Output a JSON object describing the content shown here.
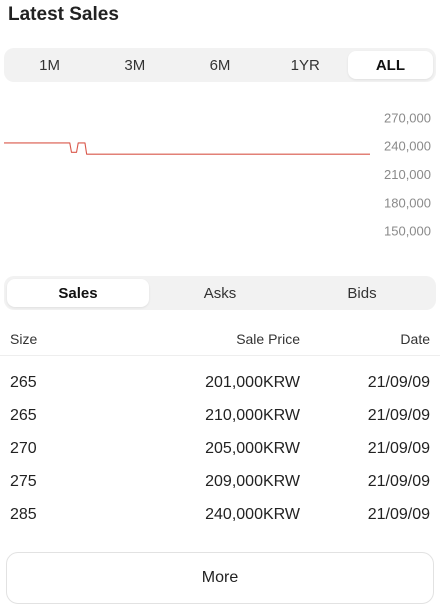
{
  "section_title": "Latest Sales",
  "range_tabs": [
    {
      "label": "1M",
      "active": false
    },
    {
      "label": "3M",
      "active": false
    },
    {
      "label": "6M",
      "active": false
    },
    {
      "label": "1YR",
      "active": false
    },
    {
      "label": "ALL",
      "active": true
    }
  ],
  "chart_data": {
    "type": "line",
    "title": "",
    "xlabel": "",
    "ylabel": "",
    "ylim": [
      140000,
      280000
    ],
    "y_ticks": [
      "270,000",
      "240,000",
      "210,000",
      "180,000",
      "150,000"
    ],
    "y_tick_values": [
      270000,
      240000,
      210000,
      180000,
      150000
    ],
    "line_color": "#d9574a",
    "series": [
      {
        "values": [
          243000,
          243000,
          243000,
          243000,
          243000,
          243000,
          243000,
          243000,
          243000,
          243000,
          243000,
          243000,
          243000,
          243000,
          243000,
          243000,
          243000,
          243000,
          243000,
          243000,
          243000,
          243000,
          243000,
          243000,
          243000,
          243000,
          243000,
          243000,
          243000,
          243000,
          243000,
          243000,
          243000,
          243000,
          243000,
          243000,
          243000,
          243000,
          243000,
          243000,
          233000,
          233000,
          233000,
          233000,
          243000,
          243000,
          243000,
          243000,
          243000,
          231000,
          231000,
          231000,
          231000,
          231000,
          231000,
          231000,
          231000,
          231000,
          231000,
          231000,
          231000,
          231000,
          231000,
          231000,
          231000,
          231000,
          231000,
          231000,
          231000,
          231000,
          231000,
          231000,
          231000,
          231000,
          231000,
          231000,
          231000,
          231000,
          231000,
          231000,
          231000,
          231000,
          231000,
          231000,
          231000,
          231000,
          231000,
          231000,
          231000,
          231000,
          231000,
          231000,
          231000,
          231000,
          231000,
          231000,
          231000,
          231000,
          231000,
          231000,
          231000,
          231000,
          231000,
          231000,
          231000,
          231000,
          231000,
          231000,
          231000,
          231000,
          231000,
          231000,
          231000,
          231000,
          231000,
          231000,
          231000,
          231000,
          231000,
          231000,
          231000,
          231000,
          231000,
          231000,
          231000,
          231000,
          231000,
          231000,
          231000,
          231000,
          231000,
          231000,
          231000,
          231000,
          231000,
          231000,
          231000,
          231000,
          231000,
          231000,
          231000,
          231000,
          231000,
          231000,
          231000,
          231000,
          231000,
          231000,
          231000,
          231000,
          231000,
          231000,
          231000,
          231000,
          231000,
          231000,
          231000,
          231000,
          231000,
          231000,
          231000,
          231000,
          231000,
          231000,
          231000,
          231000,
          231000,
          231000,
          231000,
          231000,
          231000,
          231000,
          231000,
          231000,
          231000,
          231000,
          231000,
          231000,
          231000,
          231000,
          231000,
          231000,
          231000,
          231000,
          231000,
          231000,
          231000,
          231000,
          231000,
          231000,
          231000,
          231000,
          231000,
          231000,
          231000,
          231000,
          231000,
          231000,
          231000,
          231000,
          231000,
          231000,
          231000,
          231000,
          231000,
          231000,
          231000,
          231000,
          231000,
          231000,
          231000,
          231000,
          231000,
          231000,
          231000,
          231000,
          231000,
          231000
        ]
      }
    ]
  },
  "tabs": [
    {
      "label": "Sales",
      "active": true
    },
    {
      "label": "Asks",
      "active": false
    },
    {
      "label": "Bids",
      "active": false
    }
  ],
  "table": {
    "headers": {
      "size": "Size",
      "price": "Sale Price",
      "date": "Date"
    },
    "rows": [
      {
        "size": "265",
        "price": "201,000KRW",
        "date": "21/09/09"
      },
      {
        "size": "265",
        "price": "210,000KRW",
        "date": "21/09/09"
      },
      {
        "size": "270",
        "price": "205,000KRW",
        "date": "21/09/09"
      },
      {
        "size": "275",
        "price": "209,000KRW",
        "date": "21/09/09"
      },
      {
        "size": "285",
        "price": "240,000KRW",
        "date": "21/09/09"
      }
    ]
  },
  "more_label": "More"
}
